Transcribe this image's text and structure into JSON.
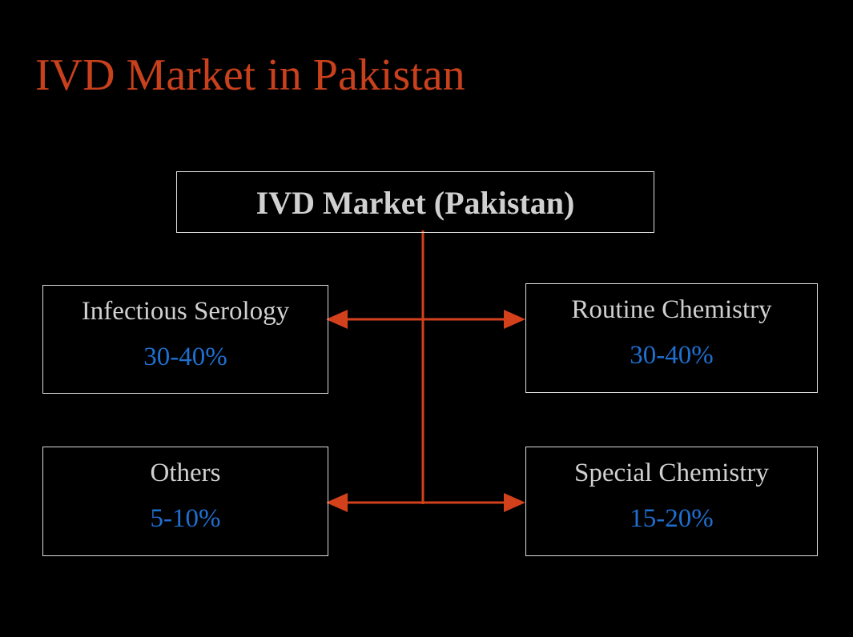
{
  "title": "IVD Market in Pakistan",
  "root": {
    "label": "IVD Market (Pakistan)"
  },
  "nodes": [
    {
      "label": "Infectious Serology",
      "value": "30-40%"
    },
    {
      "label": "Routine Chemistry",
      "value": "30-40%"
    },
    {
      "label": "Others",
      "value": "5-10%"
    },
    {
      "label": "Special Chemistry",
      "value": "15-20%"
    }
  ]
}
